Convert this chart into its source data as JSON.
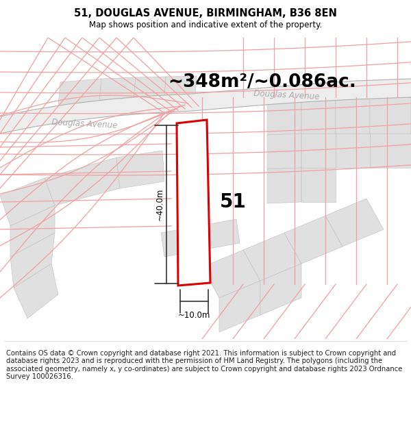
{
  "title": "51, DOUGLAS AVENUE, BIRMINGHAM, B36 8EN",
  "subtitle": "Map shows position and indicative extent of the property.",
  "area_text": "~348m²/~0.086ac.",
  "number_label": "51",
  "dim_width": "~10.0m",
  "dim_height": "~40.0m",
  "bg_color": "#f7f7f7",
  "plot_fill": "#ffffff",
  "plot_edge": "#dd0000",
  "cadastral_color": "#f0a0a0",
  "road_label1": "Douglas Avenue",
  "road_label2": "Douglas Avenue",
  "footer_text": "Contains OS data © Crown copyright and database right 2021. This information is subject to Crown copyright and database rights 2023 and is reproduced with the permission of HM Land Registry. The polygons (including the associated geometry, namely x, y co-ordinates) are subject to Crown copyright and database rights 2023 Ordnance Survey 100026316.",
  "title_fontsize": 10.5,
  "subtitle_fontsize": 8.5,
  "area_fontsize": 19,
  "number_fontsize": 20,
  "footer_fontsize": 7.2,
  "parcel_gray": "#e0e0e0",
  "parcel_edge": "#c0c0c0"
}
